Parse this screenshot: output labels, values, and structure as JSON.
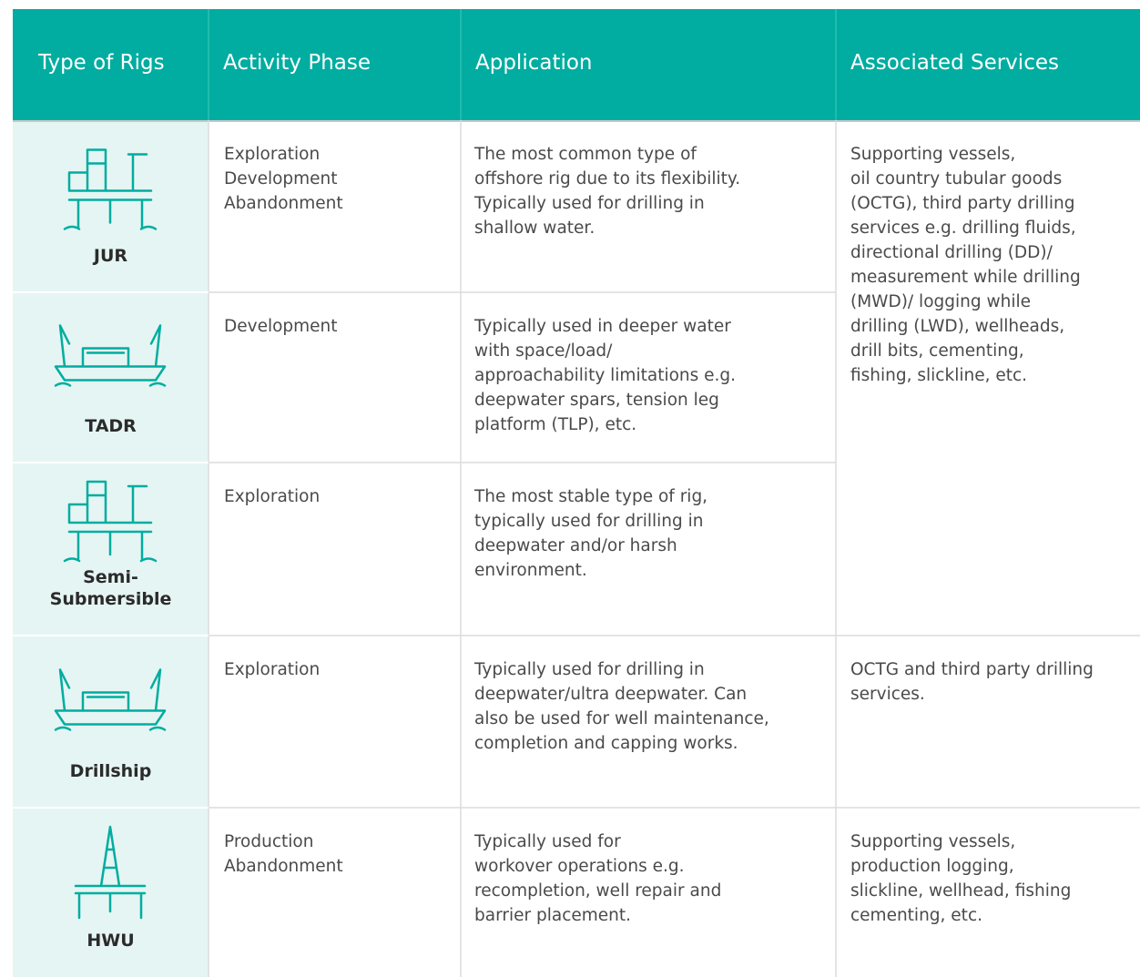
{
  "header": [
    "Type of Rigs",
    "Activity Phase",
    "Application",
    "Associated Services"
  ],
  "rows": [
    {
      "rig": [
        "JUR"
      ],
      "phase": [
        "Exploration",
        "Development",
        "Abandonment"
      ],
      "application": [
        "The most common type of",
        "offshore rig due to its flexibility.",
        "Typically used for drilling in",
        "shallow water."
      ],
      "services": [
        "Supporting vessels,",
        "oil country tubular goods",
        "(OCTG), third party drilling",
        "services e.g. drilling fluids,",
        "directional drilling (DD)/",
        "measurement while drilling",
        "(MWD)/ logging while",
        "drilling (LWD), wellheads,",
        "drill bits, cementing,",
        "fishing, slickline, etc."
      ]
    },
    {
      "rig": [
        "TADR"
      ],
      "phase": [
        "Development"
      ],
      "application": [
        "Typically used in deeper water",
        "with space/load/",
        "approachability limitations e.g.",
        "deepwater spars, tension leg",
        "platform (TLP), etc."
      ]
    },
    {
      "rig": [
        "Semi-",
        "Submersible"
      ],
      "phase": [
        "Exploration"
      ],
      "application": [
        "The most stable type of rig,",
        "typically used for drilling in",
        "deepwater and/or harsh",
        "environment."
      ]
    },
    {
      "rig": [
        "Drillship"
      ],
      "phase": [
        "Exploration"
      ],
      "application": [
        "Typically used for drilling in",
        "deepwater/ultra deepwater. Can",
        "also be used for well maintenance,",
        "completion and capping works."
      ],
      "services": [
        "OCTG and third party drilling",
        "services."
      ]
    },
    {
      "rig": [
        "HWU"
      ],
      "phase": [
        "Production",
        "Abandonment"
      ],
      "application": [
        "Typically used for",
        "workover operations e.g.",
        "recompletion, well repair and",
        "barrier placement."
      ],
      "services": [
        "Supporting vessels,",
        "production logging,",
        "slickline, wellhead, fishing",
        "cementing, etc."
      ]
    }
  ]
}
